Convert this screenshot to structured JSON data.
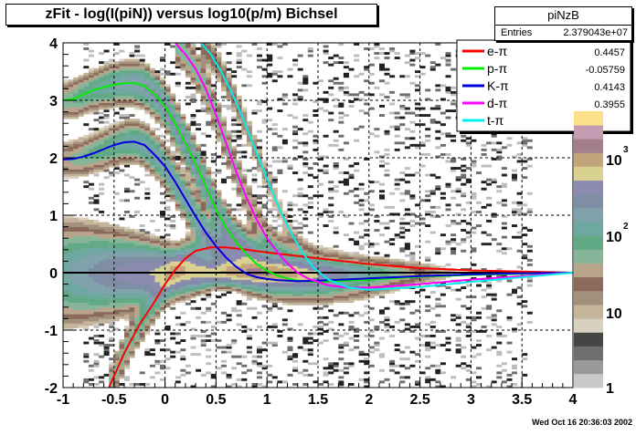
{
  "title": "zFit - log(I(piN)) versus log10(p/m) Bichsel",
  "stats": {
    "name": "piNzB",
    "entries_label": "Entries",
    "entries_value": "2.379043e+07"
  },
  "footer": "Wed Oct 16 20:36:03 2002",
  "colors": {
    "electron": "#ff0000",
    "proton": "#00ee00",
    "kaon": "#0000dd",
    "deuteron": "#ff00ff",
    "triton": "#00eeee"
  },
  "chart_data": {
    "type": "heatmap",
    "title": "zFit - log(I(piN)) versus log10(p/m) Bichsel",
    "xlim": [
      -1,
      4
    ],
    "ylim": [
      -2,
      4
    ],
    "x_ticks": [
      "-1",
      "-0.5",
      "0",
      "0.5",
      "1",
      "1.5",
      "2",
      "2.5",
      "3",
      "3.5",
      "4"
    ],
    "y_ticks": [
      "-2",
      "-1",
      "0",
      "1",
      "2",
      "3",
      "4"
    ],
    "grid": true,
    "colorbar": {
      "scale": "log",
      "ticks": [
        "1",
        "10",
        "10^2",
        "10^3"
      ]
    },
    "legend_position": "top-right",
    "series": [
      {
        "name": "e-π",
        "value": "0.4457",
        "color": "#ff0000",
        "x": [
          -0.55,
          -0.4,
          -0.25,
          -0.1,
          0.0,
          0.1,
          0.2,
          0.3,
          0.45,
          0.6,
          0.8,
          1.0,
          1.5,
          2.0,
          2.5,
          3.0,
          3.5,
          4.0
        ],
        "y": [
          -2.0,
          -1.4,
          -0.9,
          -0.5,
          -0.2,
          0.05,
          0.25,
          0.38,
          0.44,
          0.44,
          0.4,
          0.35,
          0.25,
          0.15,
          0.08,
          0.04,
          0.02,
          0.0
        ]
      },
      {
        "name": "p-π",
        "value": "-0.05759",
        "color": "#00ee00",
        "x": [
          -1.0,
          -0.9,
          -0.8,
          -0.7,
          -0.6,
          -0.5,
          -0.4,
          -0.3,
          -0.2,
          -0.1,
          0.0,
          0.1,
          0.2,
          0.3,
          0.4,
          0.5,
          0.6,
          0.7,
          0.8,
          0.9,
          1.0,
          1.1,
          1.2,
          1.3,
          1.5,
          2.0,
          2.5,
          3.0,
          3.5,
          4.0
        ],
        "y": [
          3.0,
          3.02,
          3.1,
          3.18,
          3.23,
          3.27,
          3.3,
          3.3,
          3.25,
          3.1,
          2.9,
          2.6,
          2.25,
          1.9,
          1.5,
          1.1,
          0.78,
          0.52,
          0.32,
          0.15,
          0.03,
          -0.05,
          -0.1,
          -0.14,
          -0.16,
          -0.12,
          -0.07,
          -0.04,
          -0.02,
          0.0
        ]
      },
      {
        "name": "K-π",
        "value": "0.4143",
        "color": "#0000dd",
        "x": [
          -1.0,
          -0.9,
          -0.8,
          -0.7,
          -0.6,
          -0.5,
          -0.4,
          -0.3,
          -0.2,
          -0.1,
          0.0,
          0.1,
          0.2,
          0.3,
          0.4,
          0.5,
          0.6,
          0.7,
          0.8,
          0.9,
          1.0,
          1.1,
          1.2,
          1.3,
          1.5,
          2.0,
          2.5,
          3.0,
          3.5,
          4.0
        ],
        "y": [
          1.97,
          1.98,
          2.02,
          2.08,
          2.15,
          2.22,
          2.27,
          2.28,
          2.22,
          2.05,
          1.85,
          1.58,
          1.28,
          0.98,
          0.7,
          0.46,
          0.26,
          0.1,
          -0.02,
          -0.08,
          -0.11,
          -0.13,
          -0.14,
          -0.15,
          -0.14,
          -0.1,
          -0.06,
          -0.03,
          -0.01,
          0.0
        ]
      },
      {
        "name": "d-π",
        "value": "0.3955",
        "color": "#ff00ff",
        "x": [
          0.1,
          0.15,
          0.2,
          0.3,
          0.4,
          0.5,
          0.6,
          0.7,
          0.8,
          0.9,
          1.0,
          1.1,
          1.2,
          1.3,
          1.4,
          1.6,
          1.8,
          2.0,
          2.5,
          3.0,
          3.5,
          4.0
        ],
        "y": [
          4.0,
          3.9,
          3.8,
          3.55,
          3.2,
          2.75,
          2.25,
          1.75,
          1.3,
          0.92,
          0.6,
          0.36,
          0.16,
          0.0,
          -0.1,
          -0.22,
          -0.26,
          -0.26,
          -0.2,
          -0.12,
          -0.06,
          0.0
        ]
      },
      {
        "name": "t-π",
        "value": "",
        "color": "#00eeee",
        "x": [
          0.35,
          0.45,
          0.55,
          0.65,
          0.75,
          0.85,
          0.95,
          1.05,
          1.15,
          1.25,
          1.35,
          1.45,
          1.6,
          1.8,
          2.0,
          2.5,
          3.0,
          3.5,
          4.0
        ],
        "y": [
          4.0,
          3.8,
          3.5,
          3.15,
          2.75,
          2.3,
          1.85,
          1.42,
          1.0,
          0.65,
          0.35,
          0.1,
          -0.12,
          -0.26,
          -0.3,
          -0.25,
          -0.16,
          -0.08,
          0.0
        ]
      }
    ]
  }
}
